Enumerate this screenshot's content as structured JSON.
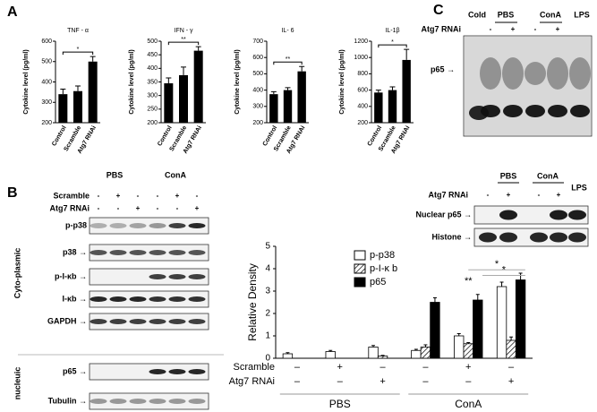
{
  "panel_labels": [
    "A",
    "B",
    "C"
  ],
  "chart_data": [
    {
      "type": "bar",
      "title": "TNF - α",
      "y_label": "Cytokine level (pg/ml)",
      "categories": [
        "Control",
        "Scramble",
        "Atg7 RNAi"
      ],
      "values": [
        340,
        355,
        500
      ],
      "errors": [
        25,
        25,
        25
      ],
      "color": "#000000",
      "ylim": [
        200,
        600
      ],
      "yticks": [
        200,
        300,
        400,
        500,
        600
      ],
      "annotations": [
        "*"
      ]
    },
    {
      "type": "bar",
      "title": "IFN - γ",
      "y_label": "Cytokine level (pg/ml)",
      "categories": [
        "Control",
        "Scramble",
        "Atg7 RNAi"
      ],
      "values": [
        345,
        375,
        465
      ],
      "errors": [
        20,
        30,
        15
      ],
      "color": "#000000",
      "ylim": [
        200,
        500
      ],
      "yticks": [
        200,
        250,
        300,
        350,
        400,
        450,
        500
      ],
      "annotations": [
        "**"
      ]
    },
    {
      "type": "bar",
      "title": "IL- 6",
      "y_label": "Cytokine level (pg/ml)",
      "categories": [
        "Control",
        "Scramble",
        "Atg7 RNAi"
      ],
      "values": [
        375,
        400,
        515
      ],
      "errors": [
        15,
        15,
        30
      ],
      "color": "#000000",
      "ylim": [
        200,
        700
      ],
      "yticks": [
        200,
        300,
        400,
        500,
        600,
        700
      ],
      "annotations": [
        "**"
      ]
    },
    {
      "type": "bar",
      "title": "IL-1β",
      "y_label": "Cytokine level (pg/ml)",
      "categories": [
        "Control",
        "Scramble",
        "Atg7 RNAi"
      ],
      "values": [
        570,
        600,
        970
      ],
      "errors": [
        30,
        40,
        130
      ],
      "color": "#000000",
      "ylim": [
        200,
        1200
      ],
      "yticks": [
        200,
        400,
        600,
        800,
        1000,
        1200
      ],
      "annotations": [
        "*"
      ]
    },
    {
      "type": "grouped_bar",
      "y_label": "Relative Density",
      "ylim": [
        0,
        5
      ],
      "yticks": [
        0,
        1,
        2,
        3,
        4,
        5
      ],
      "legend": "top-left",
      "series": [
        {
          "name": "p-p38",
          "color": "#ffffff",
          "values": [
            0.2,
            0.3,
            0.5,
            0.35,
            1.0,
            3.2
          ],
          "errors": [
            0.05,
            0.05,
            0.07,
            0.05,
            0.1,
            0.2
          ]
        },
        {
          "name": "p-I-κ b",
          "color": "#ffffff",
          "pattern": "hatch",
          "values": [
            0,
            0,
            0.1,
            0.5,
            0.65,
            0.8
          ],
          "errors": [
            0,
            0,
            0.03,
            0.1,
            0.05,
            0.15
          ]
        },
        {
          "name": "p65",
          "color": "#000000",
          "values": [
            0,
            0,
            0,
            2.5,
            2.6,
            3.5
          ],
          "errors": [
            0,
            0,
            0,
            0.2,
            0.25,
            0.3
          ]
        }
      ],
      "rows": [
        {
          "label": "Scramble",
          "values": [
            "–",
            "+",
            "–",
            "–",
            "+",
            "–"
          ]
        },
        {
          "label": "Atg7 RNAi",
          "values": [
            "–",
            "–",
            "+",
            "–",
            "–",
            "+"
          ]
        }
      ],
      "groups": [
        "PBS",
        "ConA"
      ],
      "annotations": [
        "*",
        "*",
        "**"
      ]
    }
  ],
  "blot_b": {
    "groups": [
      "PBS",
      "ConA"
    ],
    "rows": [
      {
        "label": "Scramble",
        "values": [
          "-",
          "+",
          "-",
          "-",
          "+",
          "-"
        ]
      },
      {
        "label": "Atg7 RNAi",
        "values": [
          "-",
          "-",
          "+",
          "-",
          "-",
          "+"
        ]
      }
    ],
    "bands": [
      "p-p38",
      "p38 →",
      "p-I-κb →",
      "I-κb →",
      "GAPDH →",
      "p65 →",
      "Tubulin →"
    ],
    "sections": [
      "Cyto-plasmic",
      "nucleuic"
    ]
  },
  "blot_c_top": {
    "groups": [
      "Cold",
      "PBS",
      "ConA",
      "LPS"
    ],
    "row": {
      "label": "Atg7 RNAi",
      "values": [
        "-",
        "+",
        "-",
        "+"
      ]
    },
    "band": "p65 →"
  },
  "blot_c_bottom": {
    "groups": [
      "PBS",
      "ConA",
      "LPS"
    ],
    "row": {
      "label": "Atg7 RNAi",
      "values": [
        "-",
        "+",
        "-",
        "+"
      ]
    },
    "bands": [
      "Nuclear p65 →",
      "Histone →"
    ]
  }
}
